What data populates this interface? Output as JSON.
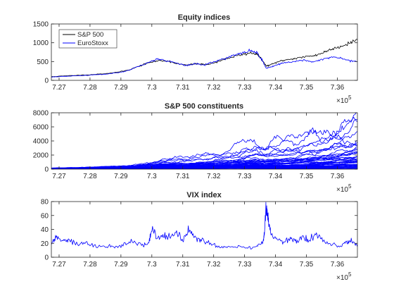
{
  "chart_data": [
    {
      "type": "line",
      "title": "Equity indices",
      "xlim": [
        7.2675,
        7.3665
      ],
      "ylim": [
        0,
        1500
      ],
      "x_ticks": [
        7.27,
        7.28,
        7.29,
        7.3,
        7.31,
        7.32,
        7.33,
        7.34,
        7.35,
        7.36
      ],
      "x_tick_labels": [
        "7.27",
        "7.28",
        "7.29",
        "7.3",
        "7.31",
        "7.32",
        "7.33",
        "7.34",
        "7.35",
        "7.36"
      ],
      "x_multiplier": "×10",
      "x_exponent": "5",
      "y_ticks": [
        0,
        500,
        1000,
        1500
      ],
      "y_tick_labels": [
        "0",
        "500",
        "1000",
        "1500"
      ],
      "legend": "top-left",
      "grid": false,
      "series": [
        {
          "name": "S&P 500",
          "color": "#000000",
          "x": [
            7.2675,
            7.27,
            7.275,
            7.28,
            7.285,
            7.29,
            7.293,
            7.296,
            7.299,
            7.302,
            7.305,
            7.308,
            7.311,
            7.314,
            7.317,
            7.32,
            7.323,
            7.326,
            7.329,
            7.332,
            7.334,
            7.3355,
            7.337,
            7.339,
            7.341,
            7.343,
            7.346,
            7.349,
            7.352,
            7.355,
            7.358,
            7.361,
            7.364,
            7.3665
          ],
          "y": [
            95,
            110,
            130,
            150,
            180,
            230,
            290,
            380,
            470,
            520,
            520,
            450,
            400,
            440,
            420,
            460,
            550,
            620,
            680,
            730,
            700,
            560,
            380,
            430,
            500,
            540,
            580,
            620,
            650,
            720,
            830,
            900,
            1000,
            1080
          ]
        },
        {
          "name": "EuroStoxx",
          "color": "#0000ff",
          "x": [
            7.2675,
            7.27,
            7.275,
            7.28,
            7.285,
            7.29,
            7.293,
            7.296,
            7.299,
            7.302,
            7.305,
            7.308,
            7.311,
            7.314,
            7.317,
            7.32,
            7.323,
            7.326,
            7.329,
            7.332,
            7.334,
            7.3355,
            7.337,
            7.339,
            7.341,
            7.343,
            7.346,
            7.349,
            7.352,
            7.355,
            7.358,
            7.361,
            7.364,
            7.3665
          ],
          "y": [
            90,
            100,
            120,
            140,
            165,
            210,
            280,
            380,
            480,
            580,
            510,
            470,
            390,
            440,
            410,
            490,
            570,
            650,
            720,
            790,
            740,
            560,
            320,
            370,
            430,
            470,
            500,
            540,
            480,
            560,
            620,
            600,
            520,
            500
          ]
        }
      ]
    },
    {
      "type": "line",
      "title": "S&P 500 constituents",
      "xlim": [
        7.2675,
        7.3665
      ],
      "ylim": [
        0,
        8000
      ],
      "x_ticks": [
        7.27,
        7.28,
        7.29,
        7.3,
        7.31,
        7.32,
        7.33,
        7.34,
        7.35,
        7.36
      ],
      "x_tick_labels": [
        "7.27",
        "7.28",
        "7.29",
        "7.3",
        "7.31",
        "7.32",
        "7.33",
        "7.34",
        "7.35",
        "7.36"
      ],
      "x_multiplier": "×10",
      "x_exponent": "5",
      "y_ticks": [
        0,
        2000,
        4000,
        6000,
        8000
      ],
      "y_tick_labels": [
        "0",
        "2000",
        "4000",
        "6000",
        "8000"
      ],
      "grid": false,
      "color": "#0000ff",
      "series_count": 60,
      "start_value": 100,
      "generation_seed": 7
    },
    {
      "type": "line",
      "title": "VIX index",
      "xlim": [
        7.2675,
        7.3665
      ],
      "ylim": [
        0,
        80
      ],
      "x_ticks": [
        7.27,
        7.28,
        7.29,
        7.3,
        7.31,
        7.32,
        7.33,
        7.34,
        7.35,
        7.36
      ],
      "x_tick_labels": [
        "7.27",
        "7.28",
        "7.29",
        "7.3",
        "7.31",
        "7.32",
        "7.33",
        "7.34",
        "7.35",
        "7.36"
      ],
      "x_multiplier": "×10",
      "x_exponent": "5",
      "y_ticks": [
        0,
        20,
        40,
        60,
        80
      ],
      "y_tick_labels": [
        "0",
        "20",
        "40",
        "60",
        "80"
      ],
      "grid": false,
      "series": [
        {
          "color": "#0000ff",
          "x": [
            7.2675,
            7.269,
            7.271,
            7.273,
            7.276,
            7.279,
            7.282,
            7.285,
            7.288,
            7.291,
            7.294,
            7.297,
            7.299,
            7.3,
            7.302,
            7.304,
            7.306,
            7.308,
            7.31,
            7.312,
            7.314,
            7.316,
            7.319,
            7.322,
            7.325,
            7.328,
            7.331,
            7.334,
            7.336,
            7.3365,
            7.337,
            7.3375,
            7.338,
            7.339,
            7.341,
            7.343,
            7.345,
            7.347,
            7.349,
            7.351,
            7.353,
            7.355,
            7.358,
            7.361,
            7.363,
            7.3645,
            7.3665
          ],
          "y": [
            20,
            30,
            22,
            25,
            18,
            20,
            16,
            15,
            15,
            18,
            22,
            18,
            20,
            42,
            28,
            32,
            28,
            38,
            25,
            40,
            28,
            25,
            20,
            14,
            14,
            16,
            13,
            15,
            22,
            40,
            78,
            55,
            45,
            30,
            25,
            20,
            28,
            22,
            32,
            24,
            35,
            25,
            18,
            15,
            22,
            25,
            15
          ]
        }
      ]
    }
  ]
}
